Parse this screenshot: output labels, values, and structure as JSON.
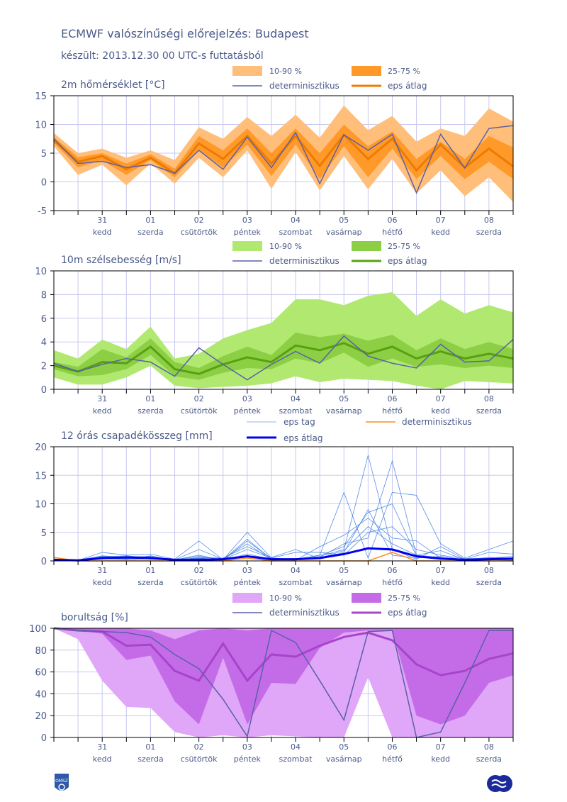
{
  "header": {
    "title": "ECMWF valószínűségi előrejelzés: Budapest",
    "subtitle": "készült: 2013.12.30 00 UTC-s futtatásból"
  },
  "logos": {
    "left": "OMSZ",
    "right": "ECMWF"
  },
  "colors": {
    "axis": "#4a5a8a",
    "grid": "#c8c8f0",
    "temp_band_outer": "#ffbf7a",
    "temp_band_inner": "#ff9a2a",
    "temp_mean": "#ee7a00",
    "wind_band_outer": "#b0e870",
    "wind_band_inner": "#8ccf45",
    "wind_mean": "#58a010",
    "cloud_band_outer": "#e0a6f8",
    "cloud_band_inner": "#c46ce8",
    "cloud_mean": "#a844cc",
    "deterministic": "#5a60a8",
    "precip_member": "#3a7ae0",
    "precip_mean": "#0000ee",
    "precip_det": "#ff8c1a"
  },
  "chart_data": [
    {
      "type": "area",
      "title": "2m hőmérséklet [°C]",
      "ylim": [
        -5,
        15
      ],
      "yticks": [
        -5,
        0,
        5,
        10,
        15
      ],
      "x": [
        0,
        1,
        2,
        3,
        4,
        5,
        6,
        7,
        8,
        9,
        10,
        11,
        12,
        13,
        14,
        15,
        16,
        17,
        18,
        19
      ],
      "day_labels": [
        "31",
        "01",
        "02",
        "03",
        "04",
        "05",
        "06",
        "07",
        "08"
      ],
      "weekday_labels": [
        "kedd",
        "szerda",
        "csütörtök",
        "péntek",
        "szombat",
        "vasárnap",
        "hétfő",
        "kedd",
        "szerda"
      ],
      "legend": [
        "10-90 %",
        "25-75 %",
        "determinisztikus",
        "eps átlag"
      ],
      "grid": true,
      "series": [
        {
          "name": "10-90 %",
          "kind": "band",
          "low": [
            6.2,
            1.2,
            3.0,
            -0.6,
            3.2,
            -0.3,
            4.2,
            0.8,
            5.5,
            -1.2,
            5.2,
            -1.5,
            4.5,
            -1.3,
            4.0,
            -2.0,
            2.0,
            -2.5,
            0.8,
            -3.5
          ],
          "high": [
            8.5,
            5.0,
            5.8,
            4.2,
            5.5,
            3.8,
            9.5,
            7.5,
            11.3,
            8.0,
            11.7,
            7.7,
            13.3,
            9.0,
            11.5,
            7.0,
            9.3,
            8.0,
            12.8,
            10.5
          ]
        },
        {
          "name": "25-75 %",
          "kind": "band",
          "low": [
            6.8,
            2.5,
            3.8,
            1.2,
            3.8,
            0.8,
            5.5,
            2.5,
            6.5,
            1.0,
            6.5,
            0.5,
            6.2,
            0.8,
            5.8,
            0.5,
            4.5,
            0.5,
            3.5,
            0.5
          ],
          "high": [
            7.8,
            4.3,
            5.0,
            3.2,
            4.8,
            2.3,
            8.0,
            5.5,
            9.3,
            5.0,
            9.3,
            5.0,
            10.0,
            6.2,
            8.8,
            4.0,
            7.0,
            4.0,
            8.0,
            6.0
          ]
        },
        {
          "name": "eps átlag",
          "kind": "line",
          "values": [
            7.2,
            3.5,
            4.5,
            2.2,
            4.2,
            1.5,
            6.7,
            4.0,
            8.0,
            3.2,
            8.0,
            2.8,
            8.2,
            4.0,
            7.5,
            2.0,
            6.5,
            2.5,
            5.8,
            2.7
          ]
        },
        {
          "name": "determinisztikus",
          "kind": "line",
          "values": [
            7.5,
            3.2,
            3.6,
            2.5,
            3.0,
            1.5,
            5.5,
            2.2,
            7.8,
            2.5,
            8.6,
            -0.3,
            8.2,
            5.5,
            8.3,
            -1.9,
            8.3,
            2.4,
            9.3,
            9.8
          ]
        }
      ]
    },
    {
      "type": "area",
      "title": "10m szélsebesség [m/s]",
      "ylim": [
        0,
        10
      ],
      "yticks": [
        0,
        2,
        4,
        6,
        8,
        10
      ],
      "x": [
        0,
        1,
        2,
        3,
        4,
        5,
        6,
        7,
        8,
        9,
        10,
        11,
        12,
        13,
        14,
        15,
        16,
        17,
        18,
        19
      ],
      "day_labels": [
        "31",
        "01",
        "02",
        "03",
        "04",
        "05",
        "06",
        "07",
        "08"
      ],
      "weekday_labels": [
        "kedd",
        "szerda",
        "csütörtök",
        "péntek",
        "szombat",
        "vasárnap",
        "hétfő",
        "kedd",
        "szerda"
      ],
      "legend": [
        "10-90 %",
        "25-75 %",
        "determinisztikus",
        "eps átlag"
      ],
      "grid": true,
      "series": [
        {
          "name": "10-90 %",
          "kind": "band",
          "low": [
            1.0,
            0.4,
            0.4,
            1.0,
            2.0,
            0.3,
            0.1,
            0.2,
            0.3,
            0.5,
            1.1,
            0.6,
            0.9,
            0.8,
            0.7,
            0.3,
            0.0,
            0.7,
            0.6,
            0.5
          ],
          "high": [
            3.3,
            2.6,
            4.2,
            3.4,
            5.3,
            2.6,
            3.0,
            4.3,
            5.0,
            5.6,
            7.6,
            7.6,
            7.1,
            7.9,
            8.2,
            6.2,
            7.6,
            6.4,
            7.1,
            6.5
          ]
        },
        {
          "name": "25-75 %",
          "kind": "band",
          "low": [
            1.7,
            1.1,
            1.2,
            1.7,
            2.9,
            1.1,
            0.8,
            1.4,
            1.8,
            1.7,
            2.6,
            2.2,
            3.1,
            1.9,
            2.6,
            1.9,
            2.1,
            1.8,
            2.0,
            1.8
          ]
        },
        {
          "name": "eps átlag",
          "kind": "line",
          "values": [
            2.0,
            1.5,
            2.3,
            2.2,
            3.6,
            1.7,
            1.3,
            2.1,
            2.7,
            2.3,
            3.7,
            3.3,
            3.9,
            3.0,
            3.6,
            2.6,
            3.2,
            2.6,
            3.0,
            2.6
          ]
        },
        {
          "name": "determinisztikus",
          "kind": "line",
          "values": [
            2.2,
            1.5,
            2.1,
            2.6,
            2.3,
            1.1,
            3.5,
            2.1,
            0.8,
            2.1,
            3.2,
            2.2,
            4.5,
            2.8,
            2.2,
            1.8,
            3.8,
            2.3,
            2.4,
            4.2
          ]
        }
      ]
    },
    {
      "type": "line",
      "title": "12 órás csapadékösszeg [mm]",
      "ylim": [
        0,
        20
      ],
      "yticks": [
        0,
        5,
        10,
        15,
        20
      ],
      "x": [
        0,
        1,
        2,
        3,
        4,
        5,
        6,
        7,
        8,
        9,
        10,
        11,
        12,
        13,
        14,
        15,
        16,
        17,
        18,
        19
      ],
      "day_labels": [
        "31",
        "01",
        "02",
        "03",
        "04",
        "05",
        "06",
        "07",
        "08"
      ],
      "weekday_labels": [
        "kedd",
        "szerda",
        "csütörtök",
        "péntek",
        "szombat",
        "vasárnap",
        "hétfő",
        "kedd",
        "szerda"
      ],
      "legend": [
        "eps tag",
        "determinisztikus",
        "eps átlag"
      ],
      "grid": true,
      "series": [
        {
          "name": "eps tag",
          "kind": "members",
          "values": [
            [
              0,
              0.1,
              1.5,
              1.0,
              1.2,
              0.3,
              3.5,
              0.2,
              5.0,
              0.5,
              0.3,
              1.0,
              12.0,
              0.5,
              12.0,
              11.5,
              3.0,
              0.5,
              2.0,
              3.5
            ],
            [
              0,
              0.2,
              0.8,
              0.5,
              0.5,
              0.2,
              1.0,
              0.1,
              3.5,
              0.4,
              0.2,
              0.8,
              2.0,
              18.5,
              2.0,
              0.3,
              2.5,
              0.3,
              1.5,
              1.2
            ],
            [
              0,
              0.1,
              0.5,
              0.8,
              0.7,
              0.2,
              0.8,
              0.2,
              3.8,
              0.3,
              0.2,
              0.6,
              3.0,
              4.0,
              17.5,
              1.0,
              1.8,
              0.2,
              0.6,
              0.5
            ],
            [
              0,
              0.0,
              0.6,
              0.3,
              0.9,
              0.1,
              0.6,
              0.5,
              2.5,
              0.6,
              2.0,
              0.4,
              1.5,
              9.0,
              1.0,
              0.5,
              0.8,
              0.2,
              0.4,
              0.4
            ],
            [
              0,
              0.1,
              0.7,
              0.9,
              0.5,
              0.2,
              0.4,
              0.4,
              3.0,
              0.2,
              0.1,
              2.5,
              4.5,
              7.5,
              4.0,
              3.5,
              0.5,
              0.2,
              0.3,
              0.3
            ],
            [
              0,
              0.0,
              0.3,
              0.4,
              0.3,
              0.1,
              0.3,
              0.1,
              1.2,
              0.3,
              0.3,
              1.0,
              2.5,
              8.5,
              10.0,
              0.8,
              0.3,
              0.1,
              0.2,
              0.2
            ],
            [
              0,
              0.1,
              0.9,
              0.6,
              0.8,
              0.2,
              2.0,
              0.3,
              2.0,
              0.5,
              1.5,
              1.5,
              1.0,
              5.0,
              6.0,
              2.0,
              1.0,
              0.4,
              0.5,
              0.8
            ],
            [
              0,
              0.1,
              0.4,
              0.2,
              0.4,
              0.1,
              0.5,
              0.2,
              0.8,
              0.1,
              0.2,
              0.5,
              1.8,
              6.0,
              3.0,
              1.0,
              0.6,
              0.1,
              0.2,
              0.1
            ]
          ]
        },
        {
          "name": "determinisztikus",
          "kind": "line",
          "values": [
            0.6,
            0,
            0,
            0,
            0,
            0,
            0,
            0,
            0.5,
            0,
            0,
            0,
            0,
            0,
            1.5,
            0,
            0,
            0,
            0,
            0
          ]
        },
        {
          "name": "eps átlag",
          "kind": "line",
          "values": [
            0.2,
            0.1,
            0.5,
            0.6,
            0.5,
            0.2,
            0.2,
            0.3,
            0.8,
            0.3,
            0.3,
            0.5,
            1.2,
            2.2,
            2.0,
            0.8,
            0.4,
            0.2,
            0.3,
            0.4
          ]
        }
      ]
    },
    {
      "type": "area",
      "title": "borultság [%]",
      "ylim": [
        0,
        100
      ],
      "yticks": [
        0,
        20,
        40,
        60,
        80,
        100
      ],
      "x": [
        0,
        1,
        2,
        3,
        4,
        5,
        6,
        7,
        8,
        9,
        10,
        11,
        12,
        13,
        14,
        15,
        16,
        17,
        18,
        19
      ],
      "day_labels": [
        "31",
        "01",
        "02",
        "03",
        "04",
        "05",
        "06",
        "07",
        "08"
      ],
      "weekday_labels": [
        "kedd",
        "szerda",
        "csütörtök",
        "péntek",
        "szombat",
        "vasárnap",
        "hétfő",
        "kedd",
        "szerda"
      ],
      "legend": [
        "10-90 %",
        "25-75 %",
        "determinisztikus",
        "eps átlag"
      ],
      "grid": true,
      "series": [
        {
          "name": "10-90 %",
          "kind": "band",
          "low": [
            100,
            90,
            52,
            28,
            27,
            5,
            0,
            2,
            0,
            2,
            1,
            0,
            0,
            55,
            0,
            0,
            0,
            0,
            0,
            0
          ],
          "high": [
            100,
            100,
            100,
            100,
            100,
            100,
            100,
            100,
            100,
            100,
            100,
            100,
            100,
            100,
            100,
            100,
            100,
            100,
            100,
            100
          ]
        },
        {
          "name": "25-75 %",
          "kind": "band",
          "low": [
            100,
            98,
            95,
            71,
            75,
            33,
            12,
            73,
            12,
            50,
            49,
            82,
            96,
            98,
            98,
            20,
            12,
            20,
            50,
            57
          ],
          "high": [
            100,
            100,
            100,
            100,
            98,
            90,
            98,
            100,
            98,
            100,
            100,
            100,
            100,
            100,
            100,
            100,
            100,
            100,
            100,
            100
          ]
        },
        {
          "name": "eps átlag",
          "kind": "line",
          "values": [
            100,
            98,
            97,
            84,
            85,
            61,
            52,
            86,
            52,
            76,
            74,
            84,
            92,
            96,
            89,
            67,
            57,
            61,
            72,
            77
          ]
        },
        {
          "name": "determinisztikus",
          "kind": "line",
          "values": [
            100,
            98,
            97,
            96,
            92,
            76,
            63,
            35,
            1,
            98,
            87,
            52,
            16,
            97,
            98,
            0,
            5,
            50,
            98,
            98
          ]
        }
      ]
    }
  ]
}
